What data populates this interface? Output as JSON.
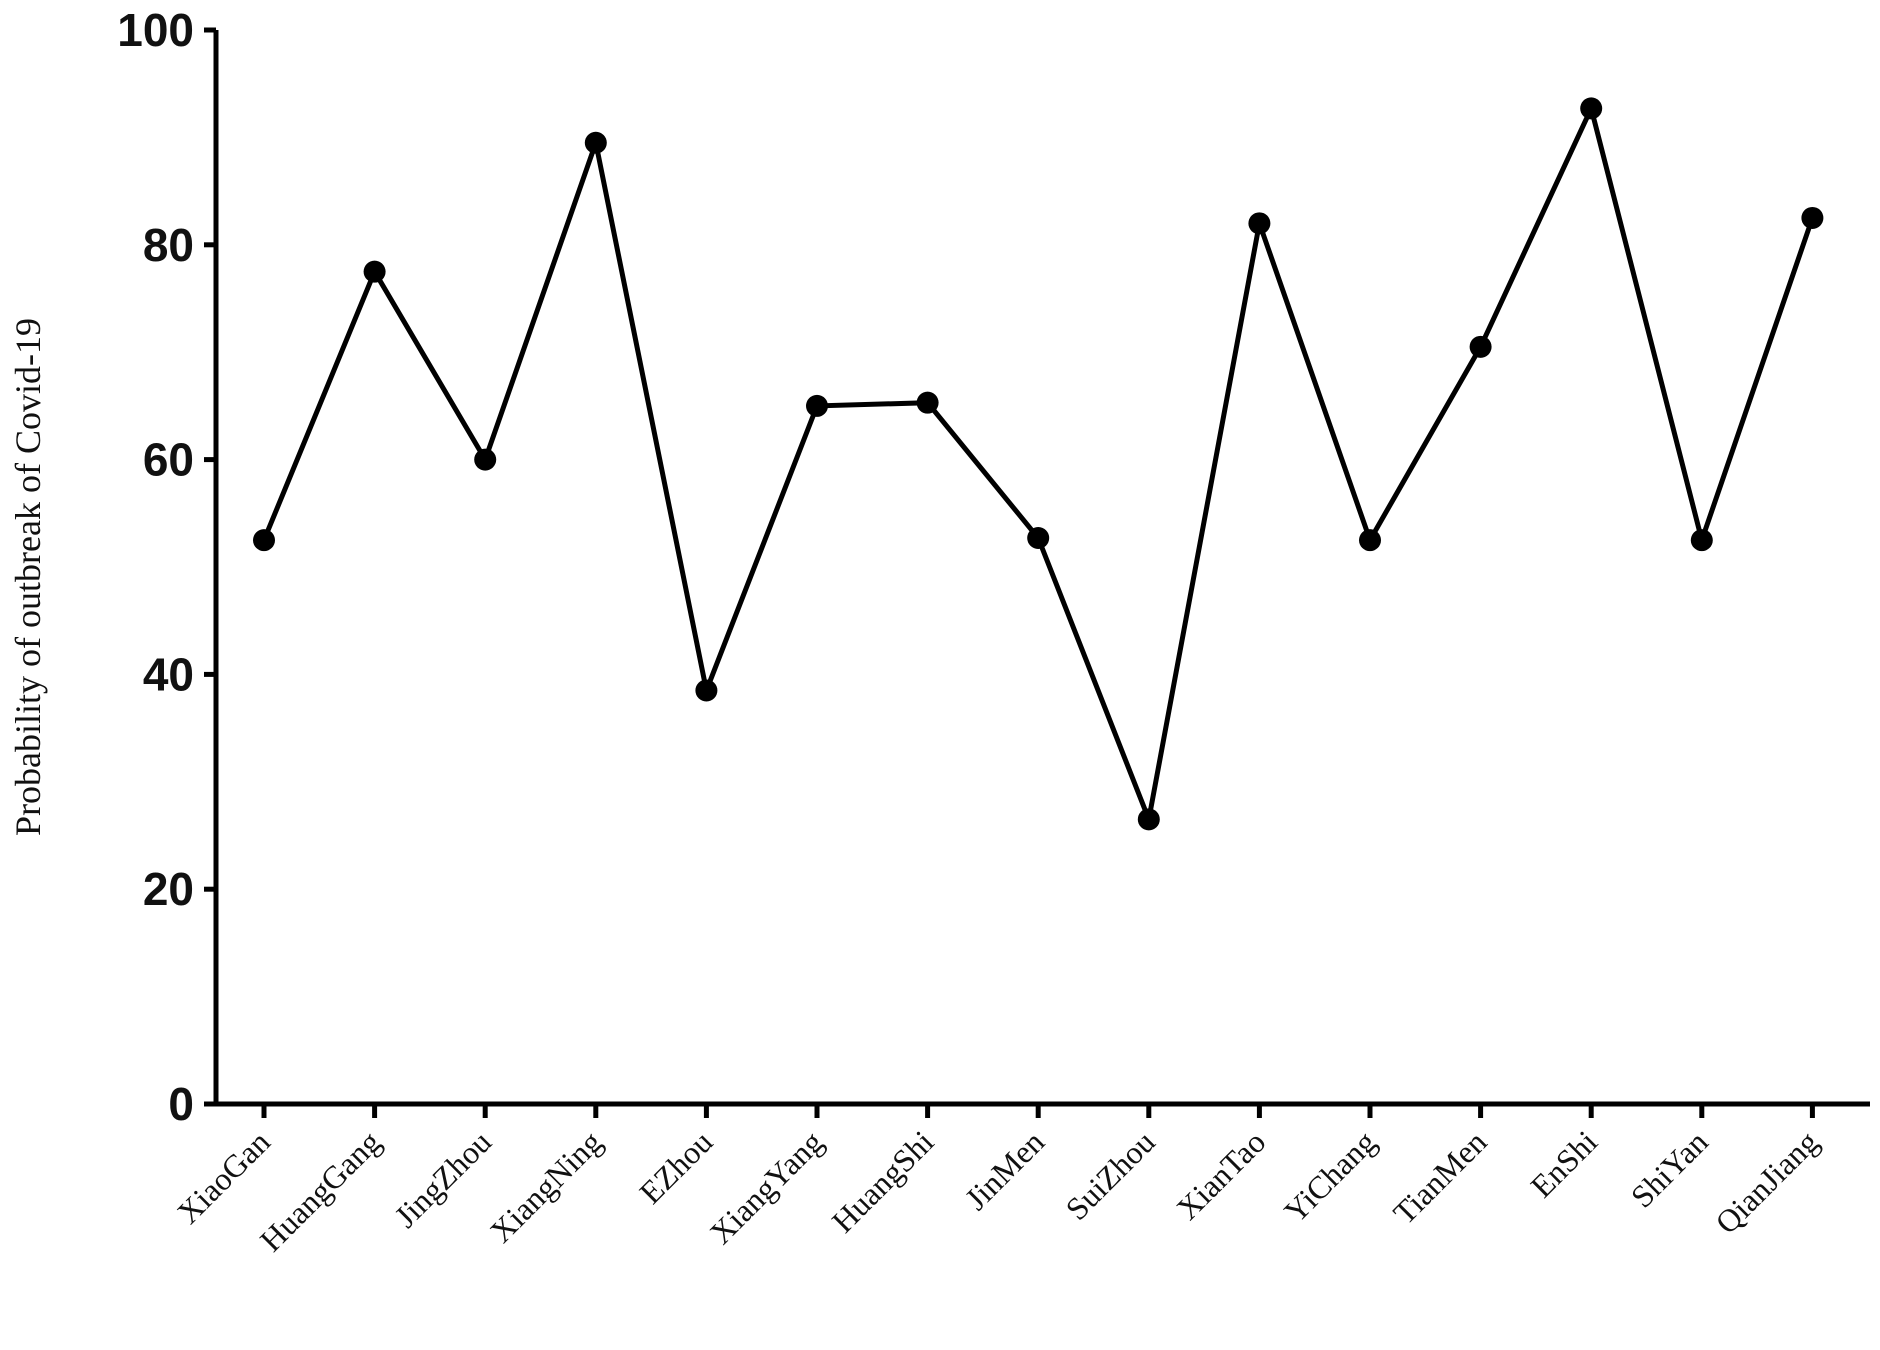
{
  "chart_data": {
    "type": "line",
    "title": "",
    "xlabel": "",
    "ylabel": "Probability of outbreak of Covid-19",
    "ylim": [
      0,
      100
    ],
    "yticks": [
      "0",
      "20",
      "40",
      "60",
      "80",
      "100"
    ],
    "categories": [
      "XiaoGan",
      "HuangGang",
      "JingZhou",
      "XiangNing",
      "EZhou",
      "XiangYang",
      "HuangShi",
      "JinMen",
      "SuiZhou",
      "XianTao",
      "YiChang",
      "TianMen",
      "EnShi",
      "ShiYan",
      "QianJiang"
    ],
    "series": [
      {
        "values": [
          52.5,
          77.5,
          60.0,
          89.5,
          38.5,
          65.0,
          65.3,
          52.7,
          26.5,
          82.0,
          52.5,
          70.5,
          92.7,
          52.5,
          82.5
        ]
      }
    ],
    "grid": false,
    "legend": "none",
    "line_color": "#000000",
    "marker": "filled-circle"
  }
}
